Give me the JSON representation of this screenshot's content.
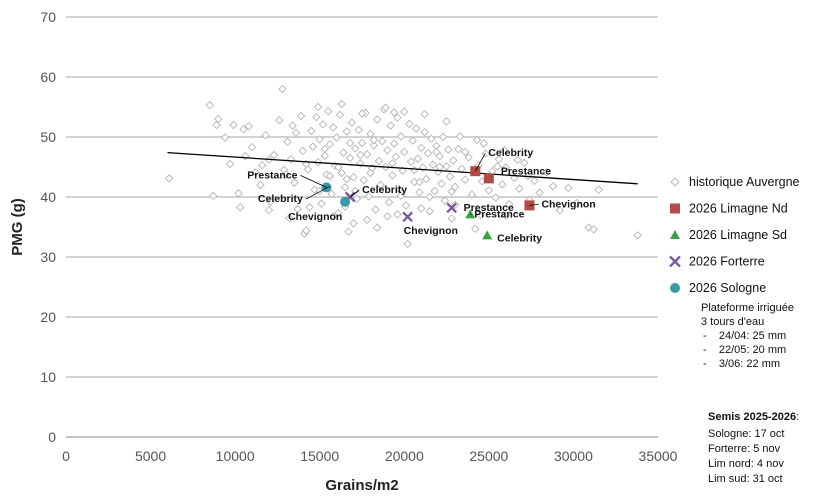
{
  "chart_data": {
    "type": "scatter",
    "xlabel": "Grains/m2",
    "ylabel": "PMG (g)",
    "xlim": [
      0,
      35000
    ],
    "ylim": [
      0,
      70
    ],
    "x_ticks": [
      0,
      5000,
      10000,
      15000,
      20000,
      25000,
      30000,
      35000
    ],
    "y_ticks": [
      0,
      10,
      20,
      30,
      40,
      50,
      60,
      70
    ],
    "grid": "horizontal",
    "legend_position": "right",
    "colors": {
      "historique": "#b5b5b5",
      "limagne_nd": "#b34a46",
      "limagne_sd": "#3aa046",
      "forterre": "#7a5aa0",
      "sologne": "#3a9aaa",
      "trend": "#000000",
      "grid": "#a6a6a6"
    },
    "historique": {
      "name": "historique Auvergne",
      "marker": "diamond-outline",
      "points": [
        [
          6100,
          43.1
        ],
        [
          8500,
          55.3
        ],
        [
          8700,
          40.2
        ],
        [
          8900,
          52.0
        ],
        [
          9000,
          53.0
        ],
        [
          9400,
          49.9
        ],
        [
          9700,
          45.5
        ],
        [
          9900,
          52.0
        ],
        [
          10200,
          40.6
        ],
        [
          10300,
          38.3
        ],
        [
          10500,
          51.3
        ],
        [
          10800,
          51.8
        ],
        [
          11000,
          48.3
        ],
        [
          11200,
          44.1
        ],
        [
          11500,
          42.0
        ],
        [
          11800,
          50.3
        ],
        [
          12000,
          46.2
        ],
        [
          12100,
          39.2
        ],
        [
          12300,
          47.0
        ],
        [
          12600,
          52.8
        ],
        [
          12800,
          58.0
        ],
        [
          12900,
          44.5
        ],
        [
          13100,
          49.2
        ],
        [
          13300,
          46.3
        ],
        [
          13500,
          42.4
        ],
        [
          13600,
          50.7
        ],
        [
          13700,
          38.0
        ],
        [
          13900,
          53.5
        ],
        [
          14000,
          47.7
        ],
        [
          14100,
          33.9
        ],
        [
          14200,
          34.4
        ],
        [
          14300,
          44.6
        ],
        [
          14500,
          51.0
        ],
        [
          14600,
          48.4
        ],
        [
          14700,
          41.2
        ],
        [
          14800,
          53.3
        ],
        [
          14900,
          45.8
        ],
        [
          15000,
          49.6
        ],
        [
          15100,
          38.9
        ],
        [
          15200,
          52.1
        ],
        [
          15300,
          46.9
        ],
        [
          15400,
          43.7
        ],
        [
          15500,
          54.3
        ],
        [
          15600,
          48.8
        ],
        [
          15700,
          40.5
        ],
        [
          15800,
          51.6
        ],
        [
          15900,
          45.2
        ],
        [
          16000,
          49.9
        ],
        [
          16100,
          37.3
        ],
        [
          16200,
          53.7
        ],
        [
          16300,
          44.0
        ],
        [
          16400,
          47.4
        ],
        [
          16500,
          41.6
        ],
        [
          16600,
          50.9
        ],
        [
          16700,
          34.2
        ],
        [
          16800,
          46.5
        ],
        [
          16900,
          52.4
        ],
        [
          17000,
          43.3
        ],
        [
          17100,
          48.1
        ],
        [
          17200,
          39.7
        ],
        [
          17300,
          51.2
        ],
        [
          17400,
          45.6
        ],
        [
          17500,
          49.0
        ],
        [
          17600,
          42.8
        ],
        [
          17700,
          54.0
        ],
        [
          17800,
          47.1
        ],
        [
          17900,
          40.1
        ],
        [
          18000,
          50.5
        ],
        [
          18100,
          44.8
        ],
        [
          18200,
          48.6
        ],
        [
          18300,
          37.9
        ],
        [
          18400,
          52.9
        ],
        [
          18500,
          46.0
        ],
        [
          18600,
          41.9
        ],
        [
          18700,
          49.3
        ],
        [
          18800,
          54.6
        ],
        [
          18900,
          45.0
        ],
        [
          19000,
          47.8
        ],
        [
          19100,
          39.1
        ],
        [
          19200,
          51.9
        ],
        [
          19300,
          43.6
        ],
        [
          19400,
          48.9
        ],
        [
          19500,
          46.7
        ],
        [
          19600,
          53.2
        ],
        [
          19700,
          41.3
        ],
        [
          19800,
          50.1
        ],
        [
          19900,
          44.4
        ],
        [
          20000,
          47.5
        ],
        [
          20100,
          38.6
        ],
        [
          20200,
          32.2
        ],
        [
          20300,
          52.2
        ],
        [
          20400,
          45.9
        ],
        [
          20500,
          49.4
        ],
        [
          20600,
          42.5
        ],
        [
          20700,
          51.4
        ],
        [
          20800,
          46.4
        ],
        [
          20900,
          40.8
        ],
        [
          21000,
          48.2
        ],
        [
          21100,
          44.9
        ],
        [
          21200,
          50.8
        ],
        [
          21300,
          43.0
        ],
        [
          21400,
          47.3
        ],
        [
          21500,
          37.6
        ],
        [
          21600,
          49.7
        ],
        [
          21700,
          45.4
        ],
        [
          21800,
          41.0
        ],
        [
          21900,
          48.5
        ],
        [
          22000,
          44.2
        ],
        [
          22100,
          46.8
        ],
        [
          22200,
          42.2
        ],
        [
          22300,
          50.0
        ],
        [
          22400,
          39.4
        ],
        [
          22500,
          45.1
        ],
        [
          22600,
          47.9
        ],
        [
          22700,
          43.4
        ],
        [
          22800,
          36.4
        ],
        [
          22900,
          46.1
        ],
        [
          23000,
          41.7
        ],
        [
          23200,
          48.0
        ],
        [
          23400,
          44.7
        ],
        [
          23600,
          42.9
        ],
        [
          23800,
          46.6
        ],
        [
          24000,
          40.4
        ],
        [
          24200,
          34.7
        ],
        [
          24400,
          45.3
        ],
        [
          24600,
          42.6
        ],
        [
          24800,
          47.2
        ],
        [
          25000,
          41.1
        ],
        [
          25200,
          44.3
        ],
        [
          25400,
          39.9
        ],
        [
          25600,
          46.3
        ],
        [
          25800,
          42.1
        ],
        [
          26000,
          44.9
        ],
        [
          26200,
          38.8
        ],
        [
          26500,
          43.2
        ],
        [
          26800,
          41.4
        ],
        [
          27100,
          45.7
        ],
        [
          27400,
          39.5
        ],
        [
          27700,
          42.7
        ],
        [
          28000,
          40.7
        ],
        [
          28400,
          44.1
        ],
        [
          28800,
          41.8
        ],
        [
          29200,
          37.8
        ],
        [
          29700,
          41.5
        ],
        [
          30200,
          39.0
        ],
        [
          30900,
          34.9
        ],
        [
          31200,
          34.6
        ],
        [
          31500,
          41.2
        ],
        [
          33800,
          33.6
        ],
        [
          12000,
          37.8
        ],
        [
          13200,
          36.5
        ],
        [
          14400,
          38.3
        ],
        [
          15000,
          41.0
        ],
        [
          15800,
          36.8
        ],
        [
          16500,
          38.4
        ],
        [
          17000,
          35.6
        ],
        [
          17800,
          36.2
        ],
        [
          18400,
          34.9
        ],
        [
          19000,
          36.8
        ],
        [
          19600,
          37.1
        ],
        [
          21000,
          38.1
        ],
        [
          23000,
          38.7
        ],
        [
          24500,
          37.0
        ],
        [
          26000,
          36.9
        ],
        [
          13400,
          51.9
        ],
        [
          14900,
          55.0
        ],
        [
          16300,
          55.5
        ],
        [
          17500,
          53.9
        ],
        [
          18900,
          54.9
        ],
        [
          20000,
          54.2
        ],
        [
          21200,
          53.8
        ],
        [
          22500,
          52.6
        ],
        [
          19400,
          54.1
        ],
        [
          18200,
          49.5
        ],
        [
          17400,
          47.0
        ],
        [
          16100,
          45.0
        ],
        [
          20600,
          44.5
        ],
        [
          21900,
          47.5
        ],
        [
          23300,
          50.1
        ],
        [
          24700,
          48.9
        ],
        [
          25900,
          47.8
        ],
        [
          26700,
          46.2
        ],
        [
          15600,
          43.5
        ],
        [
          14200,
          45.5
        ],
        [
          13000,
          43.8
        ],
        [
          11600,
          45.3
        ],
        [
          10600,
          46.8
        ],
        [
          19800,
          40.2
        ],
        [
          18600,
          42.0
        ],
        [
          17100,
          41.0
        ],
        [
          21500,
          40.0
        ],
        [
          22800,
          40.9
        ],
        [
          16800,
          49.0
        ],
        [
          15300,
          48.0
        ],
        [
          20900,
          42.5
        ],
        [
          22100,
          45.0
        ],
        [
          23600,
          47.5
        ],
        [
          24300,
          49.5
        ],
        [
          25500,
          45.1
        ],
        [
          27300,
          43.5
        ],
        [
          19300,
          45.6
        ],
        [
          18000,
          44.0
        ],
        [
          16600,
          43.0
        ]
      ]
    },
    "trendline": {
      "x": [
        6000,
        33800
      ],
      "y": [
        47.4,
        42.2
      ]
    },
    "series": [
      {
        "name": "2026 Limagne Nd",
        "marker": "square",
        "color": "#b34a46",
        "points": [
          {
            "x": 24200,
            "y": 44.3,
            "label": "Celebrity"
          },
          {
            "x": 25000,
            "y": 43.1,
            "label": "Prestance"
          },
          {
            "x": 27400,
            "y": 38.6,
            "label": "Chevignon"
          }
        ]
      },
      {
        "name": "2026 Limagne Sd",
        "marker": "triangle",
        "color": "#3aa046",
        "points": [
          {
            "x": 23900,
            "y": 37.1,
            "label": "Prestance"
          },
          {
            "x": 24900,
            "y": 33.6,
            "label": "Celebrity"
          }
        ]
      },
      {
        "name": "2026 Forterre",
        "marker": "x",
        "color": "#7a5aa0",
        "points": [
          {
            "x": 16800,
            "y": 40.0,
            "label": "Celebrity"
          },
          {
            "x": 20200,
            "y": 36.7,
            "label": "Chevignon"
          },
          {
            "x": 22800,
            "y": 38.2,
            "label": "Prestance"
          }
        ]
      },
      {
        "name": "2026 Sologne",
        "marker": "circle",
        "color": "#3a9aaa",
        "points": [
          {
            "x": 15400,
            "y": 41.6,
            "label": "Prestance"
          },
          {
            "x": 16500,
            "y": 39.2,
            "label": "Chevignon"
          },
          {
            "x": 15600,
            "y": 41.8,
            "label": "Celebrity"
          }
        ]
      }
    ],
    "annotations": {
      "irrigation": [
        "Plateforme irriguée",
        "3 tours d'eau",
        "-    24/04: 25 mm",
        "-    22/05: 20 mm",
        "-    3/06: 22 mm"
      ],
      "semis_title": "Semis 2025-2026",
      "semis_suffix": ":",
      "semis": [
        "Sologne: 17 oct",
        "Forterre: 5 nov",
        "Lim nord: 4 nov",
        "Lim sud: 31 oct"
      ]
    }
  }
}
